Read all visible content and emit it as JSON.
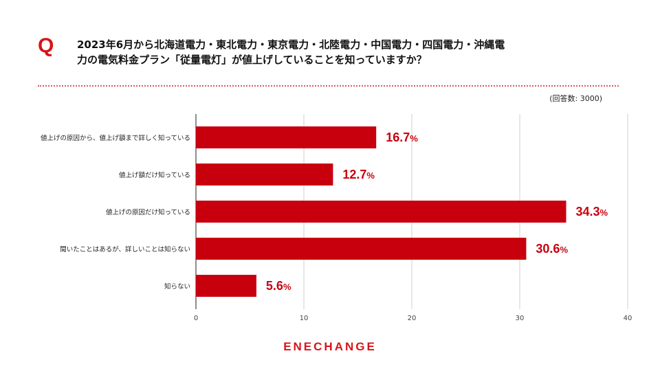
{
  "question": {
    "mark": "Q",
    "line1": "2023年6月から北海道電力・東北電力・東京電力・北陸電力・中国電力・四国電力・沖縄電",
    "line2": "力の電気料金プラン「従量電灯」が値上げしていることを知っていますか？"
  },
  "respondents": "(回答数: 3000)",
  "chart_data": {
    "type": "bar",
    "orientation": "horizontal",
    "categories": [
      "値上げの原因から、値上げ額まで詳しく知っている",
      "値上げ額だけ知っている",
      "値上げの原因だけ知っている",
      "聞いたことはあるが、詳しいことは知らない",
      "知らない"
    ],
    "values": [
      16.7,
      12.7,
      34.3,
      30.6,
      5.6
    ],
    "value_suffix": "%",
    "xlim": [
      0,
      40
    ],
    "xticks": [
      0,
      10,
      20,
      30,
      40
    ],
    "grid": "vertical",
    "bar_color": "#c8000e",
    "label_color": "#c8000e"
  },
  "brand": {
    "logo": "ENECHANGE",
    "color": "#d5141a"
  }
}
